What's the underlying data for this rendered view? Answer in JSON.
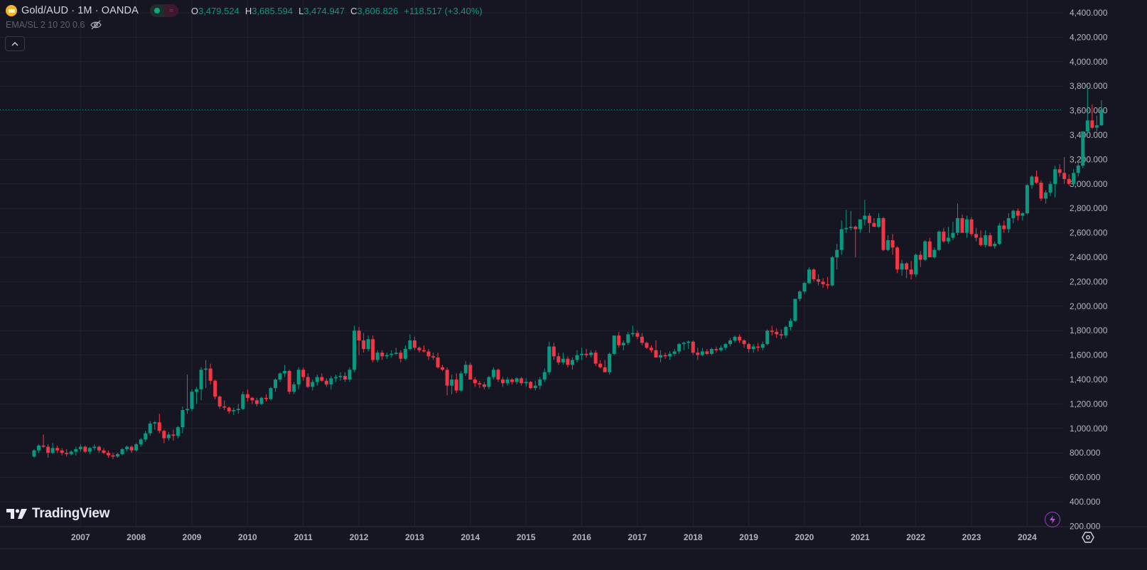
{
  "header": {
    "symbol_title": "Gold/AUD · 1M · OANDA",
    "symbol_icon": "gold-bars-icon",
    "market_status_open_color": "#14a37f",
    "ohlc": {
      "open_label": "O",
      "open": "3,479.524",
      "high_label": "H",
      "high": "3,685.594",
      "low_label": "L",
      "low": "3,474.947",
      "close_label": "C",
      "close": "3,606.826",
      "change": "+118.517 (+3.40%)"
    },
    "indicator_label": "EMA/SL 2 10 20 0.6",
    "indicator_visibility_icon": "eye-off-icon",
    "collapse_icon": "chevron-up-icon"
  },
  "branding": {
    "logo_text": "TradingView"
  },
  "colors": {
    "background": "#161622",
    "grid": "#23232f",
    "up": "#089981",
    "down": "#f23645",
    "axis_text": "#b2b5be",
    "price_line": "#089981"
  },
  "chart_data": {
    "type": "candlestick",
    "title": "Gold/AUD · 1M · OANDA",
    "xlabel": "",
    "ylabel": "",
    "ylim": [
      0,
      4500
    ],
    "y_ticks": [
      200,
      400,
      600,
      800,
      1000,
      1200,
      1400,
      1600,
      1800,
      2000,
      2200,
      2400,
      2600,
      2800,
      3000,
      3200,
      3400,
      3600,
      3800,
      4000,
      4200,
      4400
    ],
    "y_tick_labels": [
      "200.000",
      "400.000",
      "600.000",
      "800.000",
      "1,000.000",
      "1,200.000",
      "1,400.000",
      "1,600.000",
      "1,800.000",
      "2,000.000",
      "2,200.000",
      "2,400.000",
      "2,600.000",
      "2,800.000",
      "3,000.000",
      "3,200.000",
      "3,400.000",
      "3,600.000",
      "3,800.000",
      "4,000.000",
      "4,200.000",
      "4,400.000"
    ],
    "x_tick_labels": [
      "2007",
      "2008",
      "2009",
      "2010",
      "2011",
      "2012",
      "2013",
      "2014",
      "2015",
      "2016",
      "2017",
      "2018",
      "2019",
      "2020",
      "2021",
      "2022",
      "2023",
      "2024"
    ],
    "grid": true,
    "last_price": 3606.826,
    "start_month": "2006-03",
    "interval": "1M",
    "ohlc_columns": [
      "open",
      "high",
      "low",
      "close"
    ],
    "candles": [
      [
        770,
        830,
        760,
        820
      ],
      [
        820,
        870,
        800,
        860
      ],
      [
        860,
        950,
        840,
        850
      ],
      [
        850,
        870,
        760,
        800
      ],
      [
        800,
        880,
        790,
        840
      ],
      [
        840,
        860,
        800,
        820
      ],
      [
        820,
        840,
        780,
        800
      ],
      [
        800,
        830,
        770,
        790
      ],
      [
        790,
        820,
        780,
        810
      ],
      [
        810,
        850,
        780,
        830
      ],
      [
        830,
        870,
        810,
        850
      ],
      [
        850,
        860,
        800,
        810
      ],
      [
        810,
        850,
        790,
        840
      ],
      [
        840,
        870,
        820,
        850
      ],
      [
        850,
        860,
        800,
        820
      ],
      [
        820,
        840,
        790,
        800
      ],
      [
        800,
        820,
        760,
        780
      ],
      [
        780,
        800,
        750,
        770
      ],
      [
        770,
        800,
        760,
        790
      ],
      [
        790,
        840,
        780,
        830
      ],
      [
        830,
        860,
        810,
        850
      ],
      [
        850,
        860,
        800,
        820
      ],
      [
        820,
        880,
        810,
        870
      ],
      [
        870,
        920,
        850,
        910
      ],
      [
        910,
        980,
        890,
        960
      ],
      [
        960,
        1060,
        940,
        1040
      ],
      [
        1040,
        1060,
        990,
        1050
      ],
      [
        1050,
        1120,
        960,
        980
      ],
      [
        980,
        990,
        880,
        920
      ],
      [
        920,
        970,
        900,
        950
      ],
      [
        950,
        990,
        900,
        940
      ],
      [
        940,
        1020,
        920,
        1010
      ],
      [
        1010,
        1180,
        960,
        1150
      ],
      [
        1150,
        1440,
        1120,
        1160
      ],
      [
        1160,
        1320,
        1140,
        1300
      ],
      [
        1300,
        1340,
        1200,
        1320
      ],
      [
        1320,
        1500,
        1230,
        1480
      ],
      [
        1480,
        1560,
        1330,
        1490
      ],
      [
        1490,
        1530,
        1360,
        1390
      ],
      [
        1390,
        1400,
        1240,
        1260
      ],
      [
        1260,
        1270,
        1160,
        1180
      ],
      [
        1180,
        1230,
        1150,
        1170
      ],
      [
        1170,
        1180,
        1120,
        1140
      ],
      [
        1140,
        1170,
        1110,
        1150
      ],
      [
        1150,
        1200,
        1120,
        1160
      ],
      [
        1160,
        1300,
        1150,
        1280
      ],
      [
        1280,
        1320,
        1220,
        1250
      ],
      [
        1250,
        1260,
        1200,
        1230
      ],
      [
        1230,
        1250,
        1180,
        1200
      ],
      [
        1200,
        1260,
        1190,
        1250
      ],
      [
        1250,
        1280,
        1220,
        1240
      ],
      [
        1240,
        1340,
        1230,
        1330
      ],
      [
        1330,
        1410,
        1300,
        1400
      ],
      [
        1400,
        1460,
        1380,
        1450
      ],
      [
        1450,
        1520,
        1420,
        1470
      ],
      [
        1470,
        1480,
        1280,
        1300
      ],
      [
        1300,
        1380,
        1280,
        1360
      ],
      [
        1360,
        1500,
        1320,
        1480
      ],
      [
        1480,
        1500,
        1390,
        1420
      ],
      [
        1420,
        1450,
        1330,
        1340
      ],
      [
        1340,
        1400,
        1310,
        1380
      ],
      [
        1380,
        1440,
        1350,
        1420
      ],
      [
        1420,
        1450,
        1380,
        1390
      ],
      [
        1390,
        1410,
        1340,
        1360
      ],
      [
        1360,
        1430,
        1320,
        1410
      ],
      [
        1410,
        1440,
        1380,
        1420
      ],
      [
        1420,
        1460,
        1390,
        1430
      ],
      [
        1430,
        1460,
        1380,
        1400
      ],
      [
        1400,
        1500,
        1380,
        1480
      ],
      [
        1480,
        1840,
        1460,
        1800
      ],
      [
        1800,
        1830,
        1600,
        1720
      ],
      [
        1720,
        1780,
        1620,
        1650
      ],
      [
        1650,
        1760,
        1630,
        1730
      ],
      [
        1730,
        1760,
        1540,
        1560
      ],
      [
        1560,
        1640,
        1540,
        1620
      ],
      [
        1620,
        1640,
        1560,
        1590
      ],
      [
        1590,
        1620,
        1570,
        1600
      ],
      [
        1600,
        1640,
        1580,
        1610
      ],
      [
        1610,
        1660,
        1600,
        1620
      ],
      [
        1620,
        1640,
        1540,
        1570
      ],
      [
        1570,
        1680,
        1560,
        1650
      ],
      [
        1650,
        1770,
        1640,
        1720
      ],
      [
        1720,
        1750,
        1640,
        1660
      ],
      [
        1660,
        1670,
        1620,
        1640
      ],
      [
        1640,
        1680,
        1620,
        1630
      ],
      [
        1630,
        1650,
        1560,
        1590
      ],
      [
        1590,
        1620,
        1560,
        1580
      ],
      [
        1580,
        1620,
        1490,
        1500
      ],
      [
        1500,
        1520,
        1470,
        1480
      ],
      [
        1480,
        1500,
        1270,
        1350
      ],
      [
        1350,
        1440,
        1280,
        1400
      ],
      [
        1400,
        1450,
        1290,
        1310
      ],
      [
        1310,
        1470,
        1300,
        1450
      ],
      [
        1450,
        1550,
        1430,
        1520
      ],
      [
        1520,
        1540,
        1400,
        1400
      ],
      [
        1400,
        1420,
        1340,
        1370
      ],
      [
        1370,
        1390,
        1330,
        1360
      ],
      [
        1360,
        1380,
        1320,
        1340
      ],
      [
        1340,
        1430,
        1320,
        1420
      ],
      [
        1420,
        1500,
        1400,
        1480
      ],
      [
        1480,
        1490,
        1380,
        1400
      ],
      [
        1400,
        1420,
        1340,
        1370
      ],
      [
        1370,
        1420,
        1350,
        1400
      ],
      [
        1400,
        1410,
        1360,
        1380
      ],
      [
        1380,
        1420,
        1360,
        1410
      ],
      [
        1410,
        1420,
        1350,
        1370
      ],
      [
        1370,
        1410,
        1340,
        1380
      ],
      [
        1380,
        1390,
        1320,
        1330
      ],
      [
        1330,
        1390,
        1310,
        1350
      ],
      [
        1350,
        1420,
        1320,
        1400
      ],
      [
        1400,
        1490,
        1380,
        1460
      ],
      [
        1460,
        1710,
        1440,
        1670
      ],
      [
        1670,
        1700,
        1560,
        1590
      ],
      [
        1590,
        1620,
        1520,
        1540
      ],
      [
        1540,
        1620,
        1520,
        1570
      ],
      [
        1570,
        1590,
        1500,
        1520
      ],
      [
        1520,
        1580,
        1480,
        1560
      ],
      [
        1560,
        1640,
        1540,
        1600
      ],
      [
        1600,
        1660,
        1560,
        1610
      ],
      [
        1610,
        1650,
        1580,
        1600
      ],
      [
        1600,
        1640,
        1580,
        1620
      ],
      [
        1620,
        1640,
        1510,
        1530
      ],
      [
        1530,
        1560,
        1490,
        1500
      ],
      [
        1500,
        1560,
        1460,
        1460
      ],
      [
        1460,
        1620,
        1440,
        1610
      ],
      [
        1610,
        1760,
        1600,
        1760
      ],
      [
        1760,
        1790,
        1660,
        1680
      ],
      [
        1680,
        1720,
        1640,
        1700
      ],
      [
        1700,
        1790,
        1680,
        1770
      ],
      [
        1770,
        1840,
        1750,
        1780
      ],
      [
        1780,
        1800,
        1730,
        1750
      ],
      [
        1750,
        1780,
        1680,
        1700
      ],
      [
        1700,
        1710,
        1650,
        1660
      ],
      [
        1660,
        1680,
        1620,
        1640
      ],
      [
        1640,
        1720,
        1600,
        1580
      ],
      [
        1580,
        1640,
        1540,
        1600
      ],
      [
        1600,
        1620,
        1570,
        1590
      ],
      [
        1590,
        1630,
        1560,
        1610
      ],
      [
        1610,
        1650,
        1590,
        1630
      ],
      [
        1630,
        1700,
        1610,
        1690
      ],
      [
        1690,
        1710,
        1640,
        1700
      ],
      [
        1700,
        1720,
        1650,
        1710
      ],
      [
        1710,
        1720,
        1600,
        1620
      ],
      [
        1620,
        1660,
        1560,
        1600
      ],
      [
        1600,
        1660,
        1590,
        1630
      ],
      [
        1630,
        1650,
        1600,
        1610
      ],
      [
        1610,
        1660,
        1600,
        1650
      ],
      [
        1650,
        1670,
        1620,
        1640
      ],
      [
        1640,
        1680,
        1630,
        1660
      ],
      [
        1660,
        1700,
        1640,
        1690
      ],
      [
        1690,
        1740,
        1670,
        1720
      ],
      [
        1720,
        1760,
        1700,
        1750
      ],
      [
        1750,
        1770,
        1700,
        1720
      ],
      [
        1720,
        1730,
        1660,
        1690
      ],
      [
        1690,
        1700,
        1620,
        1650
      ],
      [
        1650,
        1690,
        1620,
        1670
      ],
      [
        1670,
        1700,
        1630,
        1660
      ],
      [
        1660,
        1710,
        1640,
        1690
      ],
      [
        1690,
        1810,
        1680,
        1800
      ],
      [
        1800,
        1840,
        1760,
        1790
      ],
      [
        1790,
        1820,
        1740,
        1770
      ],
      [
        1770,
        1810,
        1730,
        1760
      ],
      [
        1760,
        1840,
        1740,
        1830
      ],
      [
        1830,
        1900,
        1800,
        1880
      ],
      [
        1880,
        2060,
        1870,
        2060
      ],
      [
        2060,
        2130,
        2040,
        2120
      ],
      [
        2120,
        2200,
        2100,
        2190
      ],
      [
        2190,
        2320,
        2180,
        2300
      ],
      [
        2300,
        2310,
        2200,
        2220
      ],
      [
        2220,
        2260,
        2170,
        2200
      ],
      [
        2200,
        2230,
        2150,
        2180
      ],
      [
        2180,
        2240,
        2140,
        2170
      ],
      [
        2170,
        2410,
        2160,
        2400
      ],
      [
        2400,
        2510,
        2300,
        2460
      ],
      [
        2460,
        2700,
        2420,
        2630
      ],
      [
        2630,
        2790,
        2600,
        2640
      ],
      [
        2640,
        2780,
        2620,
        2650
      ],
      [
        2650,
        2660,
        2400,
        2630
      ],
      [
        2630,
        2710,
        2600,
        2710
      ],
      [
        2710,
        2870,
        2660,
        2740
      ],
      [
        2740,
        2760,
        2600,
        2680
      ],
      [
        2680,
        2720,
        2650,
        2650
      ],
      [
        2650,
        2760,
        2640,
        2720
      ],
      [
        2720,
        2730,
        2450,
        2460
      ],
      [
        2460,
        2580,
        2450,
        2540
      ],
      [
        2540,
        2590,
        2420,
        2480
      ],
      [
        2480,
        2490,
        2270,
        2300
      ],
      [
        2300,
        2380,
        2250,
        2350
      ],
      [
        2350,
        2360,
        2230,
        2300
      ],
      [
        2300,
        2370,
        2220,
        2260
      ],
      [
        2260,
        2430,
        2240,
        2420
      ],
      [
        2420,
        2450,
        2320,
        2380
      ],
      [
        2380,
        2540,
        2370,
        2530
      ],
      [
        2530,
        2560,
        2400,
        2400
      ],
      [
        2400,
        2480,
        2390,
        2460
      ],
      [
        2460,
        2620,
        2450,
        2610
      ],
      [
        2610,
        2640,
        2520,
        2530
      ],
      [
        2530,
        2650,
        2510,
        2560
      ],
      [
        2560,
        2690,
        2540,
        2600
      ],
      [
        2600,
        2840,
        2580,
        2720
      ],
      [
        2720,
        2750,
        2600,
        2600
      ],
      [
        2600,
        2740,
        2560,
        2710
      ],
      [
        2710,
        2730,
        2570,
        2590
      ],
      [
        2590,
        2640,
        2530,
        2560
      ],
      [
        2560,
        2620,
        2490,
        2500
      ],
      [
        2500,
        2620,
        2480,
        2580
      ],
      [
        2580,
        2600,
        2490,
        2490
      ],
      [
        2490,
        2530,
        2470,
        2510
      ],
      [
        2510,
        2680,
        2500,
        2660
      ],
      [
        2660,
        2700,
        2600,
        2630
      ],
      [
        2630,
        2760,
        2600,
        2720
      ],
      [
        2720,
        2790,
        2680,
        2780
      ],
      [
        2780,
        2800,
        2700,
        2740
      ],
      [
        2740,
        2770,
        2700,
        2760
      ],
      [
        2760,
        3000,
        2750,
        2990
      ],
      [
        2990,
        3070,
        2960,
        3060
      ],
      [
        3060,
        3110,
        3000,
        3010
      ],
      [
        3010,
        3030,
        2860,
        2880
      ],
      [
        2880,
        2950,
        2840,
        2930
      ],
      [
        2930,
        3020,
        2900,
        3000
      ],
      [
        3000,
        3150,
        2890,
        3120
      ],
      [
        3120,
        3160,
        3060,
        3090
      ],
      [
        3090,
        3220,
        3000,
        3040
      ],
      [
        3040,
        3080,
        2990,
        3000
      ],
      [
        3000,
        3120,
        2980,
        3090
      ],
      [
        3090,
        3180,
        3060,
        3150
      ],
      [
        3150,
        3430,
        3130,
        3430
      ],
      [
        3430,
        3800,
        3410,
        3520
      ],
      [
        3520,
        3650,
        3450,
        3460
      ],
      [
        3460,
        3560,
        3430,
        3480
      ],
      [
        3479.524,
        3685.594,
        3474.947,
        3606.826
      ]
    ]
  }
}
